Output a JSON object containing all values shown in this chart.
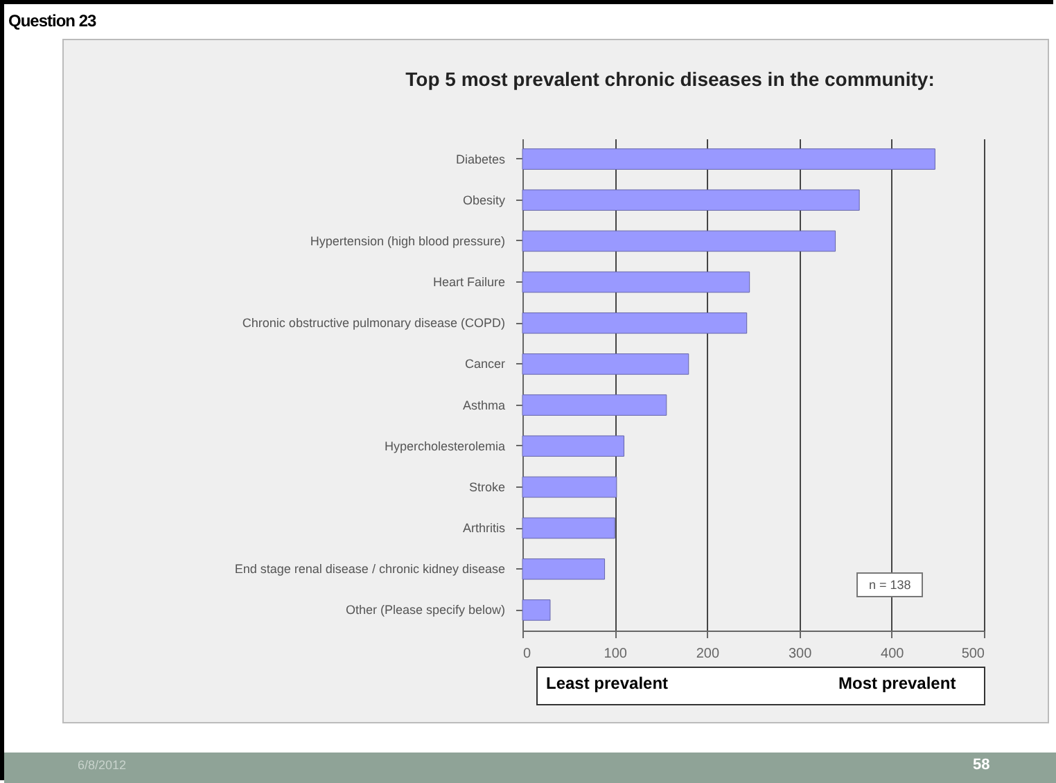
{
  "chart_data": {
    "type": "bar",
    "orientation": "horizontal",
    "title": "Top 5 most prevalent chronic diseases in the community:",
    "categories": [
      "Diabetes",
      "Obesity",
      "Hypertension (high blood pressure)",
      "Heart Failure",
      "Chronic obstructive pulmonary disease (COPD)",
      "Cancer",
      "Asthma",
      "Hypercholesterolemia",
      "Stroke",
      "Arthritis",
      "End stage renal disease / chronic kidney disease",
      "Other (Please specify below)"
    ],
    "values": [
      447,
      365,
      339,
      246,
      243,
      180,
      156,
      110,
      102,
      100,
      89,
      30
    ],
    "color": "#9999ff",
    "xlim": [
      0,
      500
    ],
    "xticks": [
      0,
      100,
      200,
      300,
      400,
      500
    ],
    "grid": "x",
    "annotations": [
      "Question 23",
      "n = 138",
      "Least prevalent",
      "Most prevalent",
      "6/8/2012",
      "58"
    ]
  }
}
